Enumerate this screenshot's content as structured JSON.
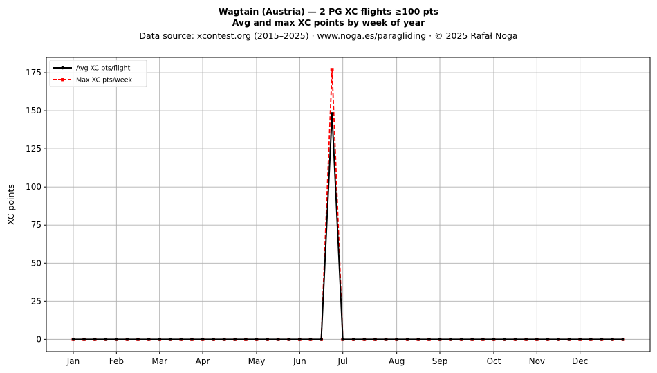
{
  "chart_data": {
    "type": "line",
    "title_lines": [
      "Wagtain (Austria)  —  2 PG XC flights ≥100 pts",
      "Avg and max XC points by week of year"
    ],
    "subtitle": "Data source: xcontest.org (2015–2025)  ·  www.noga.es/paragliding  ·  © 2025 Rafał Noga",
    "xlabel": "",
    "ylabel": "XC points",
    "ylim": [
      -8,
      185
    ],
    "xlim": [
      -1.5,
      54.5
    ],
    "yticks": [
      0,
      25,
      50,
      75,
      100,
      125,
      150,
      175
    ],
    "xticks": [
      {
        "label": "Jan",
        "week": 1
      },
      {
        "label": "Feb",
        "week": 5
      },
      {
        "label": "Mar",
        "week": 9
      },
      {
        "label": "Apr",
        "week": 13
      },
      {
        "label": "May",
        "week": 18
      },
      {
        "label": "Jun",
        "week": 22
      },
      {
        "label": "Jul",
        "week": 26
      },
      {
        "label": "Aug",
        "week": 31
      },
      {
        "label": "Sep",
        "week": 35
      },
      {
        "label": "Oct",
        "week": 40
      },
      {
        "label": "Nov",
        "week": 44
      },
      {
        "label": "Dec",
        "week": 48
      }
    ],
    "grid": true,
    "legend_position": "top-left",
    "x": [
      1,
      2,
      3,
      4,
      5,
      6,
      7,
      8,
      9,
      10,
      11,
      12,
      13,
      14,
      15,
      16,
      17,
      18,
      19,
      20,
      21,
      22,
      23,
      24,
      25,
      26,
      27,
      28,
      29,
      30,
      31,
      32,
      33,
      34,
      35,
      36,
      37,
      38,
      39,
      40,
      41,
      42,
      43,
      44,
      45,
      46,
      47,
      48,
      49,
      50,
      51,
      52
    ],
    "series": [
      {
        "name": "Avg XC pts/flight",
        "color": "#000000",
        "style": "solid",
        "marker": "circle",
        "values": [
          0,
          0,
          0,
          0,
          0,
          0,
          0,
          0,
          0,
          0,
          0,
          0,
          0,
          0,
          0,
          0,
          0,
          0,
          0,
          0,
          0,
          0,
          0,
          0,
          148,
          0,
          0,
          0,
          0,
          0,
          0,
          0,
          0,
          0,
          0,
          0,
          0,
          0,
          0,
          0,
          0,
          0,
          0,
          0,
          0,
          0,
          0,
          0,
          0,
          0,
          0,
          0
        ]
      },
      {
        "name": "Max XC pts/week",
        "color": "#ff0000",
        "style": "dashed",
        "marker": "square",
        "values": [
          0,
          0,
          0,
          0,
          0,
          0,
          0,
          0,
          0,
          0,
          0,
          0,
          0,
          0,
          0,
          0,
          0,
          0,
          0,
          0,
          0,
          0,
          0,
          0,
          177,
          0,
          0,
          0,
          0,
          0,
          0,
          0,
          0,
          0,
          0,
          0,
          0,
          0,
          0,
          0,
          0,
          0,
          0,
          0,
          0,
          0,
          0,
          0,
          0,
          0,
          0,
          0
        ]
      }
    ]
  }
}
